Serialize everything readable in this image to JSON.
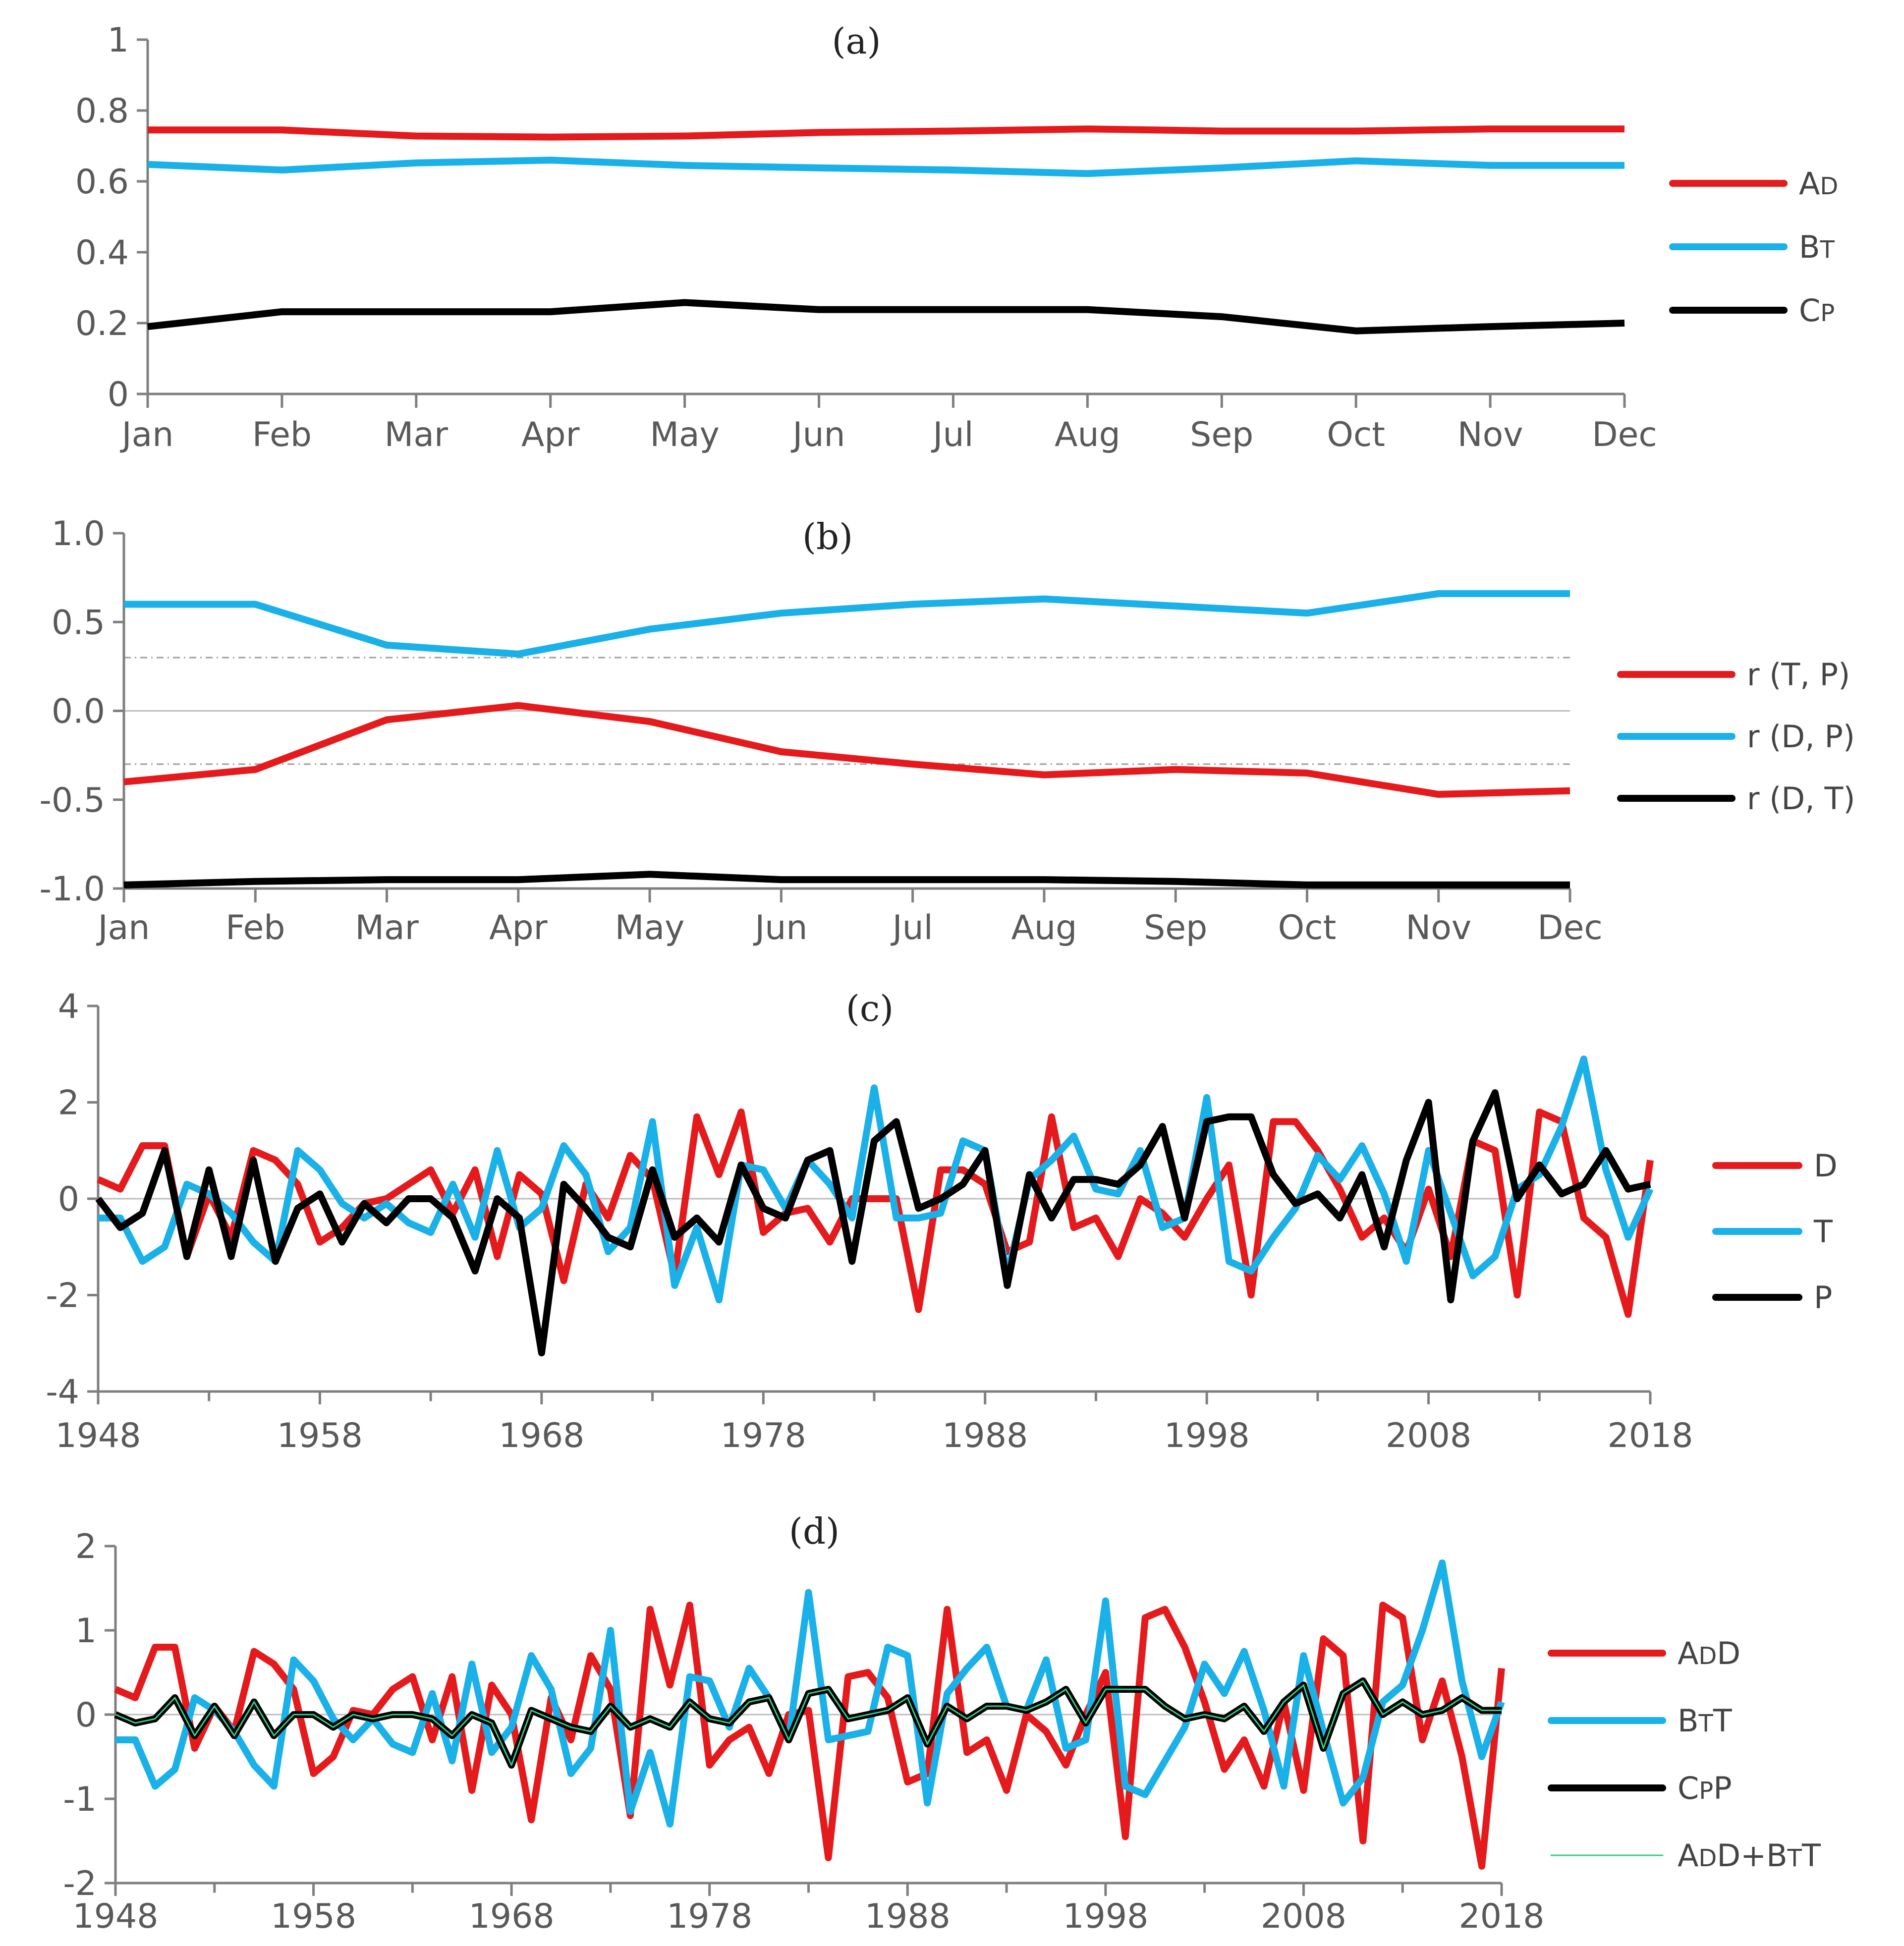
{
  "chart_data": [
    {
      "panel_label": "(a)",
      "type": "line",
      "categories": [
        "Jan",
        "Feb",
        "Mar",
        "Apr",
        "May",
        "Jun",
        "Jul",
        "Aug",
        "Sep",
        "Oct",
        "Nov",
        "Dec"
      ],
      "ylim": [
        0,
        1
      ],
      "yticks": [
        "0",
        "0.2",
        "0.4",
        "0.6",
        "0.8",
        "1"
      ],
      "yticks_values": [
        0,
        0.2,
        0.4,
        0.6,
        0.8,
        1
      ],
      "legend_position": "right",
      "series": [
        {
          "name": "AD",
          "name_parts": [
            "A",
            "D"
          ],
          "color": "#e41a1c",
          "values": [
            0.745,
            0.745,
            0.728,
            0.725,
            0.728,
            0.738,
            0.742,
            0.748,
            0.742,
            0.742,
            0.748,
            0.748
          ]
        },
        {
          "name": "BT",
          "name_parts": [
            "B",
            "T"
          ],
          "color": "#1ab0e8",
          "values": [
            0.648,
            0.632,
            0.652,
            0.66,
            0.645,
            0.638,
            0.632,
            0.622,
            0.638,
            0.658,
            0.645,
            0.645
          ]
        },
        {
          "name": "CP",
          "name_parts": [
            "C",
            "P"
          ],
          "color": "#000000",
          "values": [
            0.19,
            0.232,
            0.232,
            0.232,
            0.258,
            0.238,
            0.238,
            0.238,
            0.218,
            0.178,
            0.19,
            0.2
          ]
        }
      ]
    },
    {
      "panel_label": "(b)",
      "type": "line",
      "categories": [
        "Jan",
        "Feb",
        "Mar",
        "Apr",
        "May",
        "Jun",
        "Jul",
        "Aug",
        "Sep",
        "Oct",
        "Nov",
        "Dec"
      ],
      "ylim": [
        -1,
        1
      ],
      "yticks": [
        "-1.0",
        "-0.5",
        "0.0",
        "0.5",
        "1.0"
      ],
      "yticks_values": [
        -1,
        -0.5,
        0,
        0.5,
        1
      ],
      "reference_lines": [
        0.3,
        -0.3
      ],
      "legend_position": "right",
      "series": [
        {
          "name": "r (T, P)",
          "color": "#e41a1c",
          "values": [
            -0.4,
            -0.33,
            -0.05,
            0.03,
            -0.06,
            -0.23,
            -0.3,
            -0.36,
            -0.33,
            -0.35,
            -0.47,
            -0.45
          ]
        },
        {
          "name": "r (D, P)",
          "color": "#1ab0e8",
          "values": [
            0.6,
            0.6,
            0.37,
            0.32,
            0.46,
            0.55,
            0.6,
            0.63,
            0.59,
            0.55,
            0.66,
            0.66
          ]
        },
        {
          "name": "r (D, T)",
          "color": "#000000",
          "values": [
            -0.98,
            -0.96,
            -0.95,
            -0.95,
            -0.92,
            -0.95,
            -0.95,
            -0.95,
            -0.96,
            -0.98,
            -0.98,
            -0.98
          ]
        }
      ]
    },
    {
      "panel_label": "(c)",
      "type": "line",
      "x_start": 1948,
      "x_end": 2018,
      "xticks": [
        "1948",
        "1958",
        "1968",
        "1978",
        "1988",
        "1998",
        "2008",
        "2018"
      ],
      "xticks_values": [
        1948,
        1958,
        1968,
        1978,
        1988,
        1998,
        2008,
        2018
      ],
      "ylim": [
        -4,
        4
      ],
      "yticks": [
        "-4",
        "-2",
        "0",
        "2",
        "4"
      ],
      "yticks_values": [
        -4,
        -2,
        0,
        2,
        4
      ],
      "legend_position": "right",
      "series": [
        {
          "name": "D",
          "color": "#e41a1c",
          "values": [
            0.4,
            0.2,
            1.1,
            1.1,
            -1.2,
            0.1,
            -0.8,
            1.0,
            0.8,
            0.3,
            -0.9,
            -0.6,
            -0.1,
            0.0,
            0.3,
            0.6,
            -0.3,
            0.6,
            -1.2,
            0.5,
            0.1,
            -1.7,
            0.3,
            -0.4,
            0.9,
            0.4,
            -1.6,
            1.7,
            0.5,
            1.8,
            -0.7,
            -0.3,
            -0.2,
            -0.9,
            0.0,
            0.0,
            0.0,
            -2.3,
            0.6,
            0.6,
            0.3,
            -1.1,
            -0.9,
            1.7,
            -0.6,
            -0.4,
            -1.2,
            0.0,
            -0.3,
            -0.8,
            0.0,
            0.7,
            -2.0,
            1.6,
            1.6,
            1.0,
            0.2,
            -0.8,
            -0.4,
            -1.1,
            0.2,
            -1.2,
            1.2,
            1.0,
            -2.0,
            1.8,
            1.6,
            -0.4,
            -0.8,
            -2.4,
            0.8
          ]
        },
        {
          "name": "T",
          "color": "#1ab0e8",
          "values": [
            -0.4,
            -0.4,
            -1.3,
            -1.0,
            0.3,
            0.1,
            -0.3,
            -0.9,
            -1.3,
            1.0,
            0.6,
            -0.1,
            -0.4,
            -0.1,
            -0.5,
            -0.7,
            0.3,
            -0.8,
            1.0,
            -0.6,
            -0.2,
            1.1,
            0.5,
            -1.1,
            -0.6,
            1.6,
            -1.8,
            -0.6,
            -2.1,
            0.7,
            0.6,
            -0.2,
            0.8,
            0.3,
            -0.4,
            2.3,
            -0.4,
            -0.4,
            -0.3,
            1.2,
            1.0,
            -1.6,
            0.4,
            0.8,
            1.3,
            0.2,
            0.1,
            1.0,
            -0.6,
            -0.4,
            2.1,
            -1.3,
            -1.5,
            -0.8,
            -0.2,
            0.9,
            0.4,
            1.1,
            0.1,
            -1.3,
            1.0,
            -0.3,
            -1.6,
            -1.2,
            0.2,
            0.5,
            1.5,
            2.9,
            0.6,
            -0.8,
            0.2
          ]
        },
        {
          "name": "P",
          "color": "#000000",
          "values": [
            0.0,
            -0.6,
            -0.3,
            1.0,
            -1.2,
            0.6,
            -1.2,
            0.8,
            -1.3,
            -0.2,
            0.1,
            -0.9,
            -0.1,
            -0.5,
            0.0,
            0.0,
            -0.4,
            -1.5,
            0.0,
            -0.4,
            -3.2,
            0.3,
            -0.2,
            -0.8,
            -1.0,
            0.6,
            -0.8,
            -0.4,
            -0.9,
            0.7,
            -0.2,
            -0.4,
            0.8,
            1.0,
            -1.3,
            1.2,
            1.6,
            -0.2,
            0.0,
            0.3,
            1.0,
            -1.8,
            0.5,
            -0.4,
            0.4,
            0.4,
            0.3,
            0.7,
            1.5,
            -0.4,
            1.6,
            1.7,
            1.7,
            0.5,
            -0.1,
            0.1,
            -0.4,
            0.5,
            -1.0,
            0.8,
            2.0,
            -2.1,
            1.2,
            2.2,
            0.0,
            0.7,
            0.1,
            0.3,
            1.0,
            0.2,
            0.3
          ]
        }
      ]
    },
    {
      "panel_label": "(d)",
      "type": "line",
      "x_start": 1948,
      "x_end": 2018,
      "xticks": [
        "1948",
        "1958",
        "1968",
        "1978",
        "1988",
        "1998",
        "2008",
        "2018"
      ],
      "xticks_values": [
        1948,
        1958,
        1968,
        1978,
        1988,
        1998,
        2008,
        2018
      ],
      "ylim": [
        -2,
        2
      ],
      "yticks": [
        "-2",
        "-1",
        "0",
        "1",
        "2"
      ],
      "yticks_values": [
        -2,
        -1,
        0,
        1,
        2
      ],
      "legend_position": "right",
      "series": [
        {
          "name": "ADD",
          "name_parts": [
            "A",
            "D",
            "D"
          ],
          "color": "#e41a1c",
          "values": [
            0.3,
            0.2,
            0.8,
            0.8,
            -0.4,
            0.1,
            -0.2,
            0.75,
            0.6,
            0.3,
            -0.7,
            -0.5,
            0.05,
            0.0,
            0.3,
            0.45,
            -0.3,
            0.45,
            -0.9,
            0.35,
            0.0,
            -1.25,
            0.2,
            -0.3,
            0.7,
            0.3,
            -1.2,
            1.25,
            0.35,
            1.3,
            -0.6,
            -0.3,
            -0.15,
            -0.7,
            0.0,
            0.05,
            -1.7,
            0.45,
            0.5,
            0.2,
            -0.8,
            -0.7,
            1.25,
            -0.45,
            -0.3,
            -0.9,
            0.0,
            -0.2,
            -0.6,
            0.0,
            0.5,
            -1.45,
            1.15,
            1.25,
            0.8,
            0.15,
            -0.65,
            -0.3,
            -0.85,
            0.15,
            -0.9,
            0.9,
            0.7,
            -1.5,
            1.3,
            1.15,
            -0.3,
            0.4,
            -0.5,
            -1.8,
            0.55
          ]
        },
        {
          "name": "BTT",
          "name_parts": [
            "B",
            "T",
            "T"
          ],
          "color": "#1ab0e8",
          "values": [
            -0.3,
            -0.3,
            -0.85,
            -0.65,
            0.2,
            0.05,
            -0.2,
            -0.6,
            -0.85,
            0.65,
            0.4,
            -0.05,
            -0.3,
            -0.05,
            -0.35,
            -0.45,
            0.25,
            -0.55,
            0.6,
            -0.45,
            -0.15,
            0.7,
            0.3,
            -0.7,
            -0.4,
            1.0,
            -1.15,
            -0.45,
            -1.3,
            0.45,
            0.4,
            -0.15,
            0.55,
            0.2,
            -0.3,
            1.45,
            -0.3,
            -0.25,
            -0.2,
            0.8,
            0.7,
            -1.05,
            0.25,
            0.55,
            0.8,
            0.1,
            0.05,
            0.65,
            -0.4,
            -0.3,
            1.35,
            -0.85,
            -0.95,
            -0.55,
            -0.15,
            0.6,
            0.25,
            0.75,
            0.05,
            -0.85,
            0.7,
            -0.2,
            -1.05,
            -0.75,
            0.15,
            0.35,
            1.0,
            1.8,
            0.4,
            -0.5,
            0.15
          ]
        },
        {
          "name": "CPP",
          "name_parts": [
            "C",
            "P",
            "P"
          ],
          "color": "#000000",
          "values": [
            0.0,
            -0.1,
            -0.05,
            0.2,
            -0.25,
            0.1,
            -0.25,
            0.15,
            -0.25,
            0.0,
            0.0,
            -0.15,
            0.0,
            -0.05,
            0.0,
            0.0,
            -0.05,
            -0.25,
            0.0,
            -0.1,
            -0.6,
            0.05,
            -0.05,
            -0.15,
            -0.2,
            0.1,
            -0.15,
            -0.05,
            -0.15,
            0.15,
            -0.05,
            -0.1,
            0.15,
            0.2,
            -0.3,
            0.25,
            0.3,
            -0.05,
            0.0,
            0.05,
            0.2,
            -0.35,
            0.1,
            -0.05,
            0.1,
            0.1,
            0.05,
            0.15,
            0.3,
            -0.1,
            0.3,
            0.3,
            0.3,
            0.1,
            -0.05,
            0.0,
            -0.05,
            0.1,
            -0.2,
            0.15,
            0.35,
            -0.4,
            0.25,
            0.4,
            0.0,
            0.15,
            0.0,
            0.05,
            0.2,
            0.05,
            0.05
          ]
        },
        {
          "name": "ADD+BTT",
          "name_parts": [
            "A",
            "D",
            "D",
            "+",
            "B",
            "T",
            "T"
          ],
          "color": "#33cc88",
          "values": [
            0.0,
            -0.1,
            -0.05,
            0.2,
            -0.25,
            0.1,
            -0.25,
            0.15,
            -0.25,
            0.0,
            0.0,
            -0.15,
            0.0,
            -0.05,
            0.0,
            0.0,
            -0.05,
            -0.25,
            0.0,
            -0.1,
            -0.6,
            0.05,
            -0.05,
            -0.15,
            -0.2,
            0.1,
            -0.15,
            -0.05,
            -0.15,
            0.15,
            -0.05,
            -0.1,
            0.15,
            0.2,
            -0.3,
            0.25,
            0.3,
            -0.05,
            0.0,
            0.05,
            0.2,
            -0.35,
            0.1,
            -0.05,
            0.1,
            0.1,
            0.05,
            0.15,
            0.3,
            -0.1,
            0.3,
            0.3,
            0.3,
            0.1,
            -0.05,
            0.0,
            -0.05,
            0.1,
            -0.2,
            0.15,
            0.35,
            -0.4,
            0.25,
            0.4,
            0.0,
            0.15,
            0.0,
            0.05,
            0.2,
            0.05,
            0.05
          ]
        }
      ]
    }
  ]
}
